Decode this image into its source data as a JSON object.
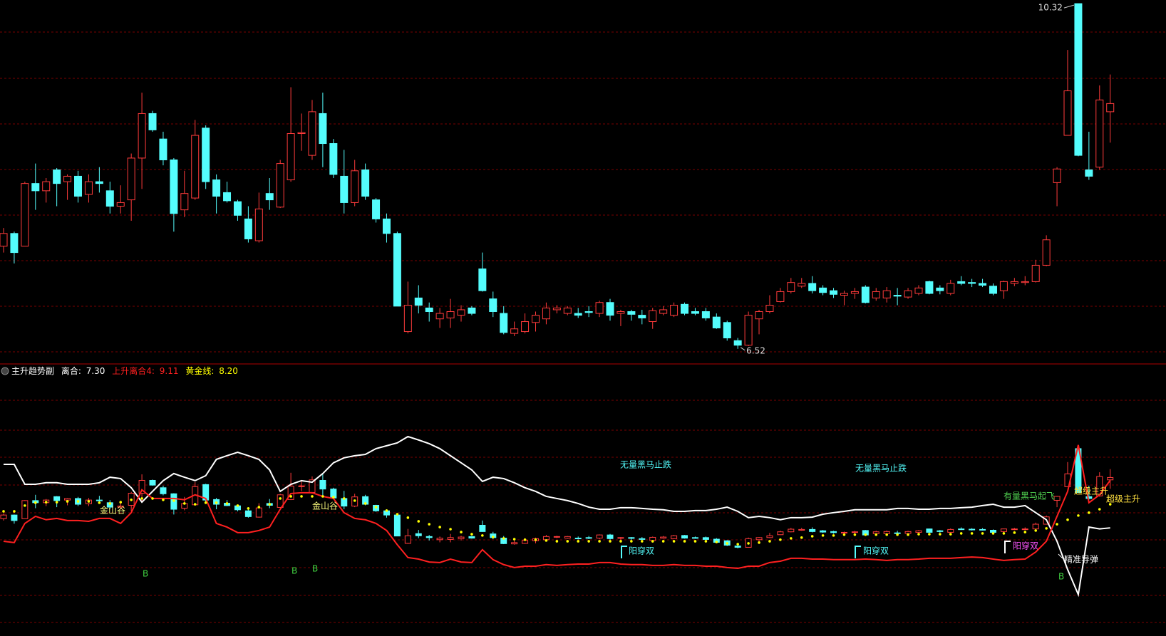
{
  "chart_data": [
    {
      "type": "candlestick",
      "up_color": "#ff3b3b",
      "down_color": "#54fcfc",
      "ylim": [
        6.44,
        10.36
      ],
      "ohlc": [
        [
          7.65,
          7.85,
          7.58,
          7.79
        ],
        [
          7.79,
          7.81,
          7.46,
          7.58
        ],
        [
          7.65,
          8.36,
          7.65,
          8.34
        ],
        [
          8.34,
          8.56,
          8.05,
          8.26
        ],
        [
          8.26,
          8.4,
          8.13,
          8.36
        ],
        [
          8.49,
          8.51,
          8.09,
          8.34
        ],
        [
          8.36,
          8.44,
          8.16,
          8.42
        ],
        [
          8.42,
          8.48,
          8.13,
          8.2
        ],
        [
          8.22,
          8.44,
          8.13,
          8.36
        ],
        [
          8.36,
          8.52,
          8.24,
          8.34
        ],
        [
          8.26,
          8.36,
          8.01,
          8.09
        ],
        [
          8.09,
          8.32,
          8.01,
          8.13
        ],
        [
          8.16,
          8.67,
          7.93,
          8.62
        ],
        [
          8.62,
          9.34,
          8.28,
          9.11
        ],
        [
          9.11,
          9.14,
          8.91,
          8.93
        ],
        [
          8.83,
          8.91,
          8.54,
          8.6
        ],
        [
          8.6,
          8.62,
          7.81,
          8.01
        ],
        [
          8.05,
          8.48,
          7.97,
          8.23
        ],
        [
          8.18,
          9.04,
          8.16,
          8.87
        ],
        [
          8.95,
          8.98,
          8.28,
          8.36
        ],
        [
          8.38,
          8.44,
          8.01,
          8.2
        ],
        [
          8.24,
          8.36,
          8.13,
          8.15
        ],
        [
          8.14,
          8.16,
          7.93,
          7.99
        ],
        [
          7.95,
          8.09,
          7.69,
          7.73
        ],
        [
          7.71,
          8.24,
          7.69,
          8.06
        ],
        [
          8.23,
          8.4,
          8.05,
          8.16
        ],
        [
          8.08,
          8.6,
          8.07,
          8.56
        ],
        [
          8.38,
          9.4,
          8.36,
          8.89
        ],
        [
          8.89,
          9.11,
          8.7,
          8.9
        ],
        [
          8.65,
          9.26,
          8.6,
          9.13
        ],
        [
          9.11,
          9.34,
          8.52,
          8.78
        ],
        [
          8.78,
          8.83,
          8.4,
          8.44
        ],
        [
          8.42,
          8.71,
          8.01,
          8.13
        ],
        [
          8.13,
          8.6,
          8.09,
          8.48
        ],
        [
          8.49,
          8.56,
          8.16,
          8.2
        ],
        [
          8.16,
          8.18,
          7.91,
          7.95
        ],
        [
          7.95,
          8.01,
          7.69,
          7.79
        ],
        [
          7.79,
          7.81,
          6.99,
          6.99
        ],
        [
          6.71,
          7.26,
          6.69,
          7.0
        ],
        [
          7.08,
          7.22,
          6.91,
          7.0
        ],
        [
          6.97,
          7.03,
          6.82,
          6.93
        ],
        [
          6.85,
          6.97,
          6.75,
          6.91
        ],
        [
          6.86,
          7.07,
          6.75,
          6.93
        ],
        [
          6.89,
          7.0,
          6.82,
          6.95
        ],
        [
          6.97,
          6.99,
          6.89,
          6.91
        ],
        [
          7.4,
          7.58,
          7.15,
          7.16
        ],
        [
          7.07,
          7.15,
          6.87,
          6.93
        ],
        [
          6.91,
          6.99,
          6.68,
          6.7
        ],
        [
          6.69,
          6.82,
          6.66,
          6.74
        ],
        [
          6.71,
          6.91,
          6.69,
          6.82
        ],
        [
          6.81,
          6.93,
          6.71,
          6.89
        ],
        [
          6.85,
          7.03,
          6.79,
          6.97
        ],
        [
          6.95,
          7.0,
          6.91,
          6.97
        ],
        [
          6.91,
          6.99,
          6.89,
          6.97
        ],
        [
          6.91,
          6.97,
          6.86,
          6.89
        ],
        [
          6.93,
          6.99,
          6.87,
          6.92
        ],
        [
          6.91,
          7.05,
          6.87,
          7.03
        ],
        [
          7.03,
          7.07,
          6.83,
          6.89
        ],
        [
          6.91,
          6.95,
          6.77,
          6.93
        ],
        [
          6.93,
          6.95,
          6.83,
          6.9
        ],
        [
          6.89,
          6.95,
          6.79,
          6.86
        ],
        [
          6.82,
          6.97,
          6.74,
          6.94
        ],
        [
          6.91,
          6.99,
          6.89,
          6.95
        ],
        [
          6.89,
          7.03,
          6.87,
          7.0
        ],
        [
          7.01,
          7.03,
          6.89,
          6.91
        ],
        [
          6.93,
          6.97,
          6.89,
          6.91
        ],
        [
          6.93,
          6.97,
          6.83,
          6.86
        ],
        [
          6.87,
          6.91,
          6.74,
          6.75
        ],
        [
          6.81,
          6.83,
          6.61,
          6.64
        ],
        [
          6.61,
          6.64,
          6.52,
          6.56
        ],
        [
          6.56,
          6.93,
          6.55,
          6.89
        ],
        [
          6.85,
          6.95,
          6.68,
          6.93
        ],
        [
          6.93,
          7.11,
          6.91,
          7.0
        ],
        [
          7.04,
          7.19,
          7.03,
          7.15
        ],
        [
          7.15,
          7.3,
          7.13,
          7.25
        ],
        [
          7.21,
          7.3,
          7.19,
          7.24
        ],
        [
          7.24,
          7.32,
          7.13,
          7.16
        ],
        [
          7.19,
          7.22,
          7.11,
          7.14
        ],
        [
          7.16,
          7.19,
          7.08,
          7.12
        ],
        [
          7.11,
          7.16,
          7.0,
          7.13
        ],
        [
          7.13,
          7.19,
          7.07,
          7.15
        ],
        [
          7.2,
          7.22,
          7.02,
          7.03
        ],
        [
          7.08,
          7.19,
          7.05,
          7.15
        ],
        [
          7.08,
          7.2,
          7.03,
          7.16
        ],
        [
          7.11,
          7.19,
          7.0,
          7.1
        ],
        [
          7.09,
          7.19,
          7.07,
          7.16
        ],
        [
          7.13,
          7.22,
          7.11,
          7.19
        ],
        [
          7.26,
          7.27,
          7.12,
          7.13
        ],
        [
          7.19,
          7.22,
          7.12,
          7.16
        ],
        [
          7.13,
          7.28,
          7.11,
          7.24
        ],
        [
          7.26,
          7.32,
          7.22,
          7.24
        ],
        [
          7.25,
          7.29,
          7.2,
          7.24
        ],
        [
          7.24,
          7.29,
          7.2,
          7.22
        ],
        [
          7.21,
          7.24,
          7.11,
          7.13
        ],
        [
          7.16,
          7.27,
          7.07,
          7.26
        ],
        [
          7.24,
          7.3,
          7.21,
          7.26
        ],
        [
          7.25,
          7.32,
          7.22,
          7.26
        ],
        [
          7.26,
          7.5,
          7.25,
          7.44
        ],
        [
          7.44,
          7.77,
          7.43,
          7.72
        ],
        [
          8.35,
          8.52,
          8.09,
          8.5
        ],
        [
          8.87,
          9.81,
          8.87,
          9.36
        ],
        [
          10.32,
          10.32,
          8.64,
          8.65
        ],
        [
          8.49,
          8.91,
          8.38,
          8.42
        ],
        [
          8.52,
          9.42,
          8.49,
          9.26
        ],
        [
          9.13,
          9.54,
          8.79,
          9.22
        ]
      ]
    },
    {
      "type": "indicator",
      "title": "主升趋势副",
      "ylim": [
        3.18,
        13.52
      ],
      "show_candles": true,
      "series": [
        {
          "name": "离合:",
          "value_label": "7.30",
          "color": "#ffffff",
          "style": "line",
          "values": [
            9.72,
            9.72,
            8.96,
            8.96,
            9.02,
            9.02,
            8.96,
            8.96,
            8.96,
            9.02,
            9.23,
            9.18,
            8.83,
            8.28,
            8.69,
            9.1,
            9.37,
            9.23,
            9.1,
            9.29,
            9.91,
            10.05,
            10.18,
            10.05,
            9.91,
            9.51,
            8.69,
            8.96,
            9.1,
            9.04,
            9.37,
            9.78,
            9.97,
            10.05,
            10.1,
            10.32,
            10.43,
            10.54,
            10.78,
            10.65,
            10.51,
            10.32,
            10.05,
            9.78,
            9.51,
            9.07,
            9.23,
            9.18,
            9.02,
            8.83,
            8.69,
            8.5,
            8.42,
            8.34,
            8.23,
            8.09,
            8.01,
            8.01,
            8.07,
            8.07,
            8.04,
            8.01,
            7.99,
            7.93,
            7.93,
            7.96,
            7.96,
            8.01,
            8.09,
            7.93,
            7.69,
            7.74,
            7.69,
            7.61,
            7.69,
            7.69,
            7.71,
            7.82,
            7.88,
            7.93,
            7.99,
            7.99,
            7.99,
            7.99,
            8.04,
            8.04,
            8.01,
            8.01,
            8.04,
            8.04,
            8.07,
            8.09,
            8.15,
            8.2,
            8.09,
            8.09,
            8.15,
            7.88,
            7.61,
            6.79,
            5.71,
            4.76,
            7.33,
            7.26,
            7.3
          ]
        },
        {
          "name": "上升离合4:",
          "value_label": "9.11",
          "color": "#ff2020",
          "style": "line",
          "values": [
            6.79,
            6.74,
            7.47,
            7.74,
            7.61,
            7.66,
            7.58,
            7.58,
            7.55,
            7.66,
            7.66,
            7.47,
            7.88,
            8.75,
            8.42,
            8.42,
            8.42,
            8.37,
            8.56,
            8.42,
            7.47,
            7.33,
            7.12,
            7.12,
            7.2,
            7.33,
            8.01,
            8.61,
            8.64,
            8.64,
            8.5,
            8.42,
            7.88,
            7.66,
            7.61,
            7.47,
            7.2,
            6.66,
            6.17,
            6.11,
            6.0,
            5.98,
            6.11,
            6.0,
            5.98,
            6.47,
            6.09,
            5.9,
            5.79,
            5.84,
            5.84,
            5.9,
            5.87,
            5.9,
            5.92,
            5.92,
            5.98,
            5.98,
            5.92,
            5.9,
            5.9,
            5.87,
            5.87,
            5.9,
            5.87,
            5.87,
            5.84,
            5.84,
            5.79,
            5.76,
            5.84,
            5.84,
            5.98,
            6.03,
            6.14,
            6.14,
            6.11,
            6.11,
            6.09,
            6.09,
            6.09,
            6.11,
            6.09,
            6.06,
            6.09,
            6.09,
            6.11,
            6.14,
            6.14,
            6.14,
            6.17,
            6.19,
            6.17,
            6.11,
            6.06,
            6.09,
            6.11,
            6.38,
            6.79,
            7.74,
            8.69,
            10.46,
            8.26,
            8.56,
            9.11
          ]
        },
        {
          "name": "黄金线:",
          "value_label": "8.20",
          "color": "#ffff00",
          "style": "dots",
          "values": [
            7.93,
            7.93,
            8.15,
            8.26,
            8.28,
            8.28,
            8.31,
            8.31,
            8.31,
            8.26,
            8.23,
            8.28,
            8.37,
            8.42,
            8.42,
            8.37,
            8.34,
            8.23,
            8.2,
            8.26,
            8.26,
            8.23,
            8.15,
            8.04,
            8.09,
            8.2,
            8.42,
            8.5,
            8.5,
            8.5,
            8.5,
            8.47,
            8.42,
            8.34,
            8.23,
            8.09,
            7.96,
            7.82,
            7.69,
            7.55,
            7.44,
            7.33,
            7.25,
            7.14,
            7.06,
            7.01,
            6.95,
            6.9,
            6.87,
            6.85,
            6.85,
            6.82,
            6.79,
            6.79,
            6.79,
            6.79,
            6.79,
            6.79,
            6.79,
            6.79,
            6.79,
            6.79,
            6.79,
            6.79,
            6.79,
            6.79,
            6.79,
            6.76,
            6.71,
            6.68,
            6.71,
            6.74,
            6.79,
            6.85,
            6.9,
            6.93,
            6.98,
            7.01,
            7.01,
            7.04,
            7.04,
            7.04,
            7.04,
            7.04,
            7.04,
            7.04,
            7.06,
            7.06,
            7.06,
            7.06,
            7.09,
            7.09,
            7.09,
            7.09,
            7.09,
            7.12,
            7.14,
            7.2,
            7.28,
            7.44,
            7.61,
            7.77,
            7.88,
            8.01,
            8.2
          ]
        }
      ],
      "annotations": [
        {
          "text": "金山谷",
          "color": "#ffff80"
        },
        {
          "text": "金山谷",
          "color": "#ffff80"
        },
        {
          "text": "无量黑马止跌",
          "color": "#54fcfc"
        },
        {
          "text": "无量黑马止跌",
          "color": "#54fcfc"
        },
        {
          "text": "有量黑马起飞",
          "color": "#50d050"
        },
        {
          "text": "阳穿双",
          "color": "#54fcfc"
        },
        {
          "text": "阳穿双",
          "color": "#54fcfc"
        },
        {
          "text": "阳穿双",
          "color": "#ff54ff"
        },
        {
          "text": "B",
          "color": "#40d040"
        },
        {
          "text": "B",
          "color": "#40d040"
        },
        {
          "text": "B",
          "color": "#40d040"
        },
        {
          "text": "B",
          "color": "#40d040"
        },
        {
          "text": "精准导弹",
          "color": "#ffffff"
        },
        {
          "text": "超级主升",
          "color": "#ffe040"
        },
        {
          "text": "超级主升",
          "color": "#ffe040"
        }
      ]
    }
  ]
}
